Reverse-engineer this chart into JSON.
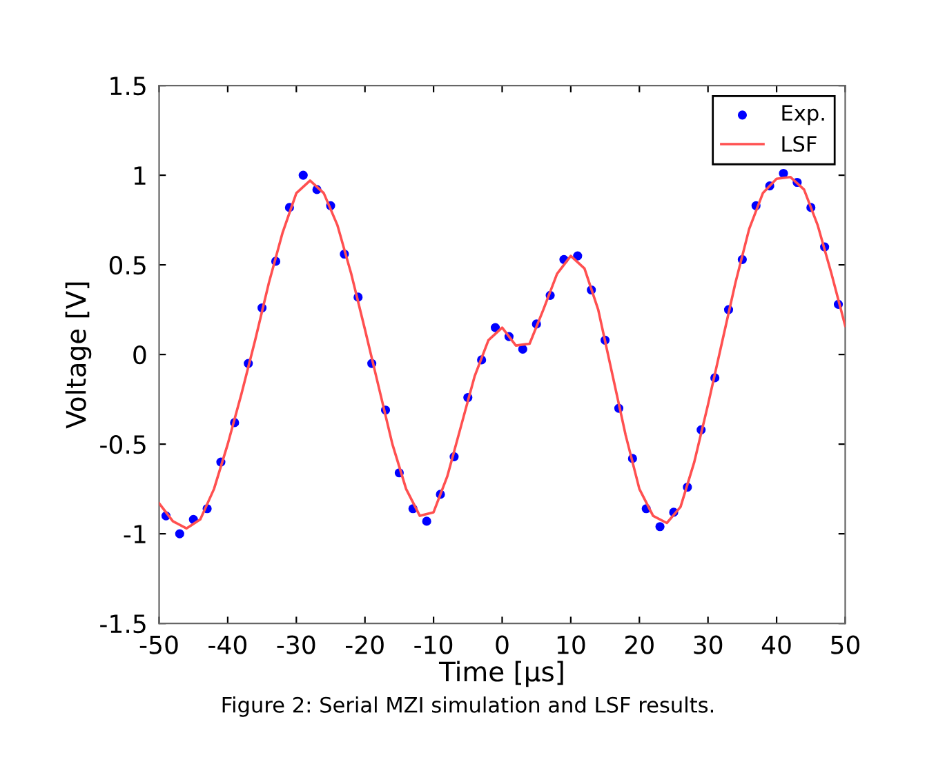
{
  "chart_data": {
    "type": "scatter",
    "xlabel": "Time [µs]",
    "ylabel": "Voltage [V]",
    "xlim": [
      -50,
      50
    ],
    "xticks": [
      -50,
      -40,
      -30,
      -20,
      -10,
      0,
      10,
      20,
      30,
      40,
      50
    ],
    "ylim": [
      -1.5,
      1.5
    ],
    "yticks": [
      -1.5,
      -1,
      -0.5,
      0,
      0.5,
      1,
      1.5
    ],
    "grid": false,
    "legend": "top right",
    "annotations": [
      "Figure 2: Serial MZI simulation and LSF results."
    ],
    "series": [
      {
        "name": "Exp.",
        "color": "#0000ff",
        "marker": "circle",
        "x": [
          -49,
          -47,
          -45,
          -43,
          -41,
          -39,
          -37,
          -35,
          -33,
          -31,
          -29,
          -27,
          -25,
          -23,
          -21,
          -19,
          -17,
          -15,
          -13,
          -11,
          -9,
          -7,
          -5,
          -3,
          -1,
          1,
          3,
          5,
          7,
          9,
          11,
          13,
          15,
          17,
          19,
          21,
          23,
          25,
          27,
          29,
          31,
          33,
          35,
          37,
          39,
          41,
          43,
          45,
          47,
          49
        ],
        "values": [
          -0.9,
          -1.0,
          -0.92,
          -0.86,
          -0.6,
          -0.38,
          -0.05,
          0.26,
          0.52,
          0.82,
          1.0,
          0.92,
          0.83,
          0.56,
          0.32,
          -0.05,
          -0.31,
          -0.66,
          -0.86,
          -0.93,
          -0.78,
          -0.57,
          -0.24,
          -0.03,
          0.15,
          0.1,
          0.03,
          0.17,
          0.33,
          0.53,
          0.55,
          0.36,
          0.08,
          -0.3,
          -0.58,
          -0.86,
          -0.96,
          -0.88,
          -0.74,
          -0.42,
          -0.13,
          0.25,
          0.53,
          0.83,
          0.94,
          1.01,
          0.96,
          0.82,
          0.6,
          0.28
        ]
      },
      {
        "name": "LSF",
        "type": "line",
        "color": "#ff5050",
        "marker": "none",
        "line_style": "solid",
        "x": [
          -50,
          -48,
          -46,
          -44,
          -42,
          -40,
          -38,
          -36,
          -34,
          -32,
          -30,
          -28,
          -26,
          -24,
          -22,
          -20,
          -18,
          -16,
          -14,
          -12,
          -10,
          -8,
          -6,
          -4,
          -2,
          0,
          2,
          4,
          6,
          8,
          10,
          12,
          14,
          16,
          18,
          20,
          22,
          24,
          26,
          28,
          30,
          32,
          34,
          36,
          38,
          40,
          42,
          44,
          46,
          48,
          50
        ],
        "values": [
          -0.83,
          -0.93,
          -0.97,
          -0.92,
          -0.75,
          -0.5,
          -0.22,
          0.08,
          0.4,
          0.68,
          0.9,
          0.97,
          0.9,
          0.72,
          0.45,
          0.14,
          -0.18,
          -0.5,
          -0.75,
          -0.9,
          -0.88,
          -0.68,
          -0.4,
          -0.12,
          0.08,
          0.15,
          0.05,
          0.06,
          0.25,
          0.45,
          0.55,
          0.48,
          0.25,
          -0.1,
          -0.45,
          -0.75,
          -0.9,
          -0.94,
          -0.85,
          -0.6,
          -0.28,
          0.06,
          0.4,
          0.7,
          0.9,
          0.98,
          0.99,
          0.92,
          0.72,
          0.45,
          0.16
        ]
      }
    ]
  }
}
